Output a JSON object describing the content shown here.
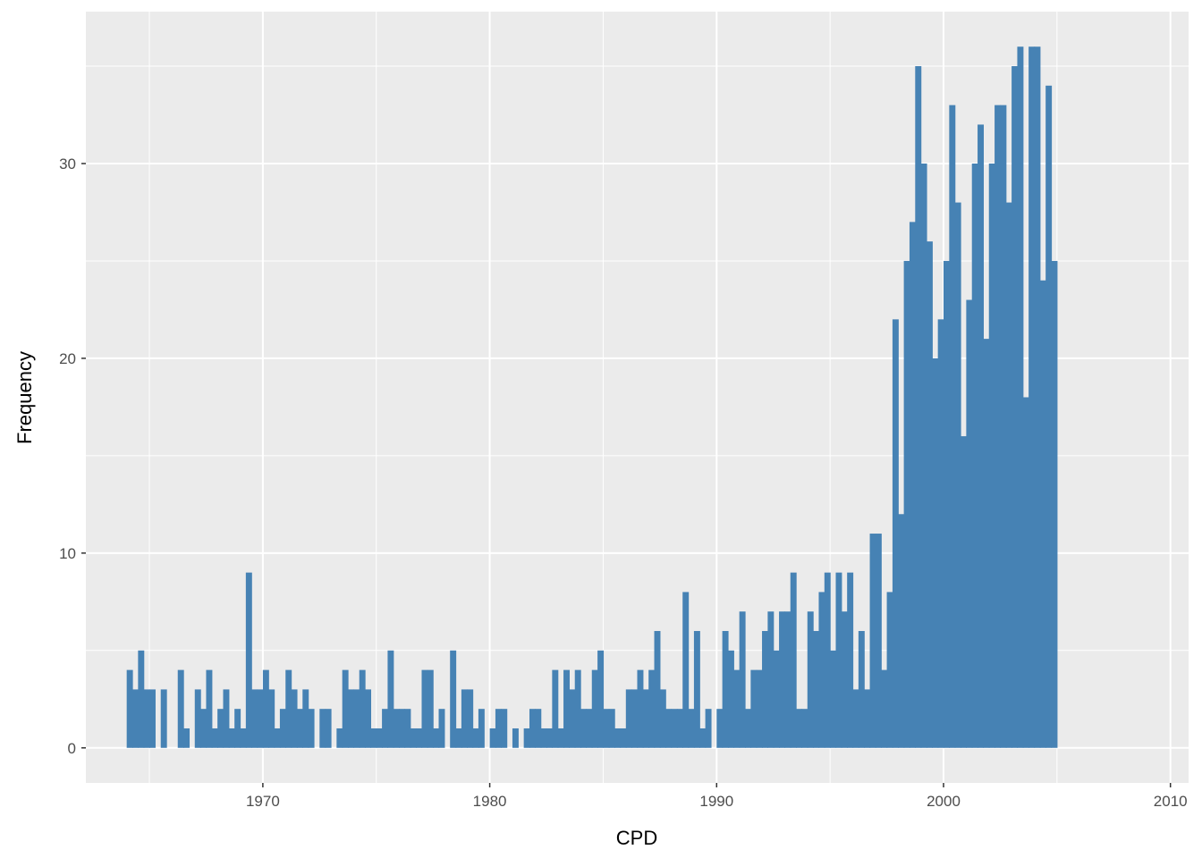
{
  "chart_data": {
    "type": "bar",
    "title": "",
    "xlabel": "CPD",
    "ylabel": "Frequency",
    "bar_color": "#4682b4",
    "panel_background": "#ebebeb",
    "grid_color": "#ffffff",
    "grid": true,
    "xlim": [
      1962.2,
      2010.8
    ],
    "ylim": [
      -1.8,
      37.8
    ],
    "x_ticks": [
      1970,
      1980,
      1990,
      2000,
      2010
    ],
    "y_ticks": [
      0,
      10,
      20,
      30
    ],
    "bin_start": 1964.0,
    "bin_width": 0.25,
    "values": [
      4,
      3,
      5,
      3,
      3,
      0,
      3,
      0,
      0,
      4,
      1,
      0,
      3,
      2,
      4,
      1,
      2,
      3,
      1,
      2,
      1,
      9,
      3,
      3,
      4,
      3,
      1,
      2,
      4,
      3,
      2,
      3,
      2,
      0,
      2,
      2,
      0,
      1,
      4,
      3,
      3,
      4,
      3,
      1,
      1,
      2,
      5,
      2,
      2,
      2,
      1,
      1,
      4,
      4,
      1,
      2,
      0,
      5,
      1,
      3,
      3,
      1,
      2,
      0,
      1,
      2,
      2,
      0,
      1,
      0,
      1,
      2,
      2,
      1,
      1,
      4,
      1,
      4,
      3,
      4,
      2,
      2,
      4,
      5,
      2,
      2,
      1,
      1,
      3,
      3,
      4,
      3,
      4,
      6,
      3,
      2,
      2,
      2,
      8,
      2,
      6,
      1,
      2,
      0,
      2,
      6,
      5,
      4,
      7,
      2,
      4,
      4,
      6,
      7,
      5,
      7,
      7,
      9,
      2,
      2,
      7,
      6,
      8,
      9,
      5,
      9,
      7,
      9,
      3,
      6,
      3,
      11,
      11,
      4,
      8,
      22,
      12,
      25,
      27,
      35,
      30,
      26,
      20,
      22,
      25,
      33,
      28,
      16,
      23,
      30,
      32,
      21,
      30,
      33,
      33,
      28,
      35,
      36,
      18,
      36,
      36,
      24,
      34,
      25
    ]
  }
}
